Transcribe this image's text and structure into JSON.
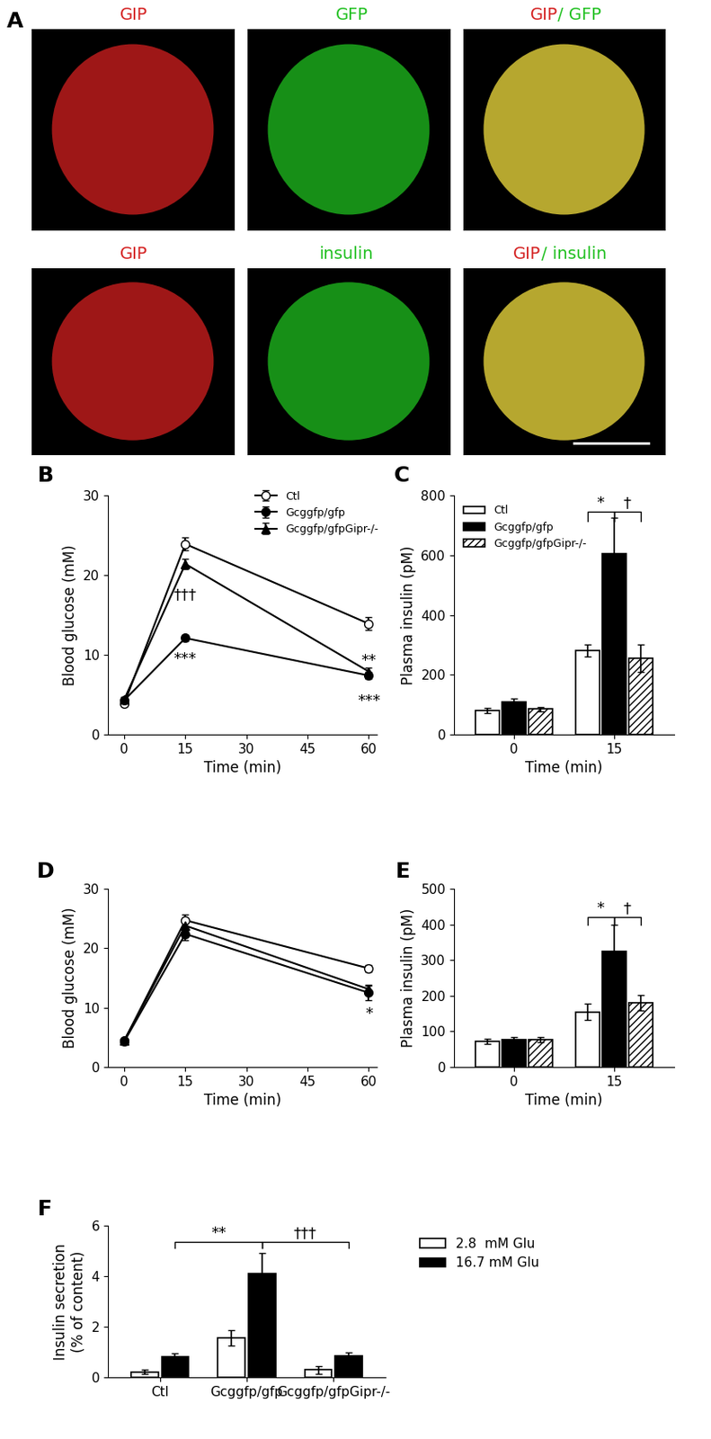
{
  "image_panel": {
    "title": "A",
    "images": [
      {
        "label": [
          {
            "text": "GIP",
            "color": "#d42020"
          }
        ]
      },
      {
        "label": [
          {
            "text": "GFP",
            "color": "#20c020"
          }
        ]
      },
      {
        "label": [
          {
            "text": "GIP",
            "color": "#d42020"
          },
          {
            "text": "/ GFP",
            "color": "#20c020"
          }
        ]
      },
      {
        "label": [
          {
            "text": "GIP",
            "color": "#d42020"
          }
        ]
      },
      {
        "label": [
          {
            "text": "insulin",
            "color": "#20c020"
          }
        ]
      },
      {
        "label": [
          {
            "text": "GIP",
            "color": "#d42020"
          },
          {
            "text": "/ insulin",
            "color": "#20c020"
          }
        ]
      }
    ]
  },
  "chart_data": [
    {
      "type": "line",
      "title": "B",
      "x_label": "Time (min)",
      "y_label": "Blood glucose (mM)",
      "x": [
        0,
        15,
        60
      ],
      "xlim": [
        -4,
        62
      ],
      "xticks": [
        0,
        15,
        30,
        45,
        60
      ],
      "ylim": [
        0,
        30
      ],
      "yticks": [
        0,
        10,
        20,
        30
      ],
      "legend": "upper right",
      "series": [
        {
          "name": "Ctl",
          "color": "#000000",
          "marker": "circle_open",
          "values": [
            3.9,
            23.9,
            13.9
          ],
          "errors": [
            0.3,
            0.8,
            0.8
          ]
        },
        {
          "name": "Gcggfp/gfp",
          "color": "#000000",
          "marker": "circle",
          "values": [
            4.3,
            12.1,
            7.4
          ],
          "errors": [
            0.3,
            0.4,
            0.4
          ]
        },
        {
          "name": "Gcggfp/gfpGipr-/-",
          "color": "#000000",
          "marker": "triangle",
          "values": [
            4.4,
            21.4,
            7.9
          ],
          "errors": [
            0.3,
            0.6,
            0.5
          ]
        }
      ],
      "annotations": [
        {
          "text": "†††",
          "x": 15,
          "y": 17.5
        },
        {
          "text": "***",
          "x": 15,
          "y": 9.5
        },
        {
          "text": "**",
          "x": 60,
          "y": 9.3
        },
        {
          "text": "***",
          "x": 60,
          "y": 4.2
        }
      ]
    },
    {
      "type": "bar",
      "title": "C",
      "x_label": "Time (min)",
      "y_label": "Plasma insulin (pM)",
      "categories": [
        "0",
        "15"
      ],
      "ylim": [
        0,
        800
      ],
      "yticks": [
        0,
        200,
        400,
        600,
        800
      ],
      "legend": "upper left",
      "series": [
        {
          "name": "Ctl",
          "color": "#ffffff",
          "values": [
            80,
            280
          ],
          "errors": [
            8,
            20
          ]
        },
        {
          "name": "Gcggfp/gfp",
          "color": "#000000",
          "values": [
            108,
            605
          ],
          "errors": [
            12,
            120
          ]
        },
        {
          "name": "Gcggfp/gfpGipr-/-",
          "color": "#ffffff",
          "values": [
            85,
            255
          ],
          "errors": [
            8,
            45
          ]
        }
      ],
      "brackets": [
        {
          "text": "*",
          "from": [
            "15",
            "Ctl"
          ],
          "to": [
            "15",
            "Gcggfp/gfp"
          ],
          "y": 745
        },
        {
          "text": "†",
          "from": [
            "15",
            "Gcggfp/gfp"
          ],
          "to": [
            "15",
            "Gcggfp/gfpGipr-/-"
          ],
          "y": 745
        }
      ]
    },
    {
      "type": "line",
      "title": "D",
      "x_label": "Time (min)",
      "y_label": "Blood glucose (mM)",
      "x": [
        0,
        15,
        60
      ],
      "xlim": [
        -4,
        62
      ],
      "xticks": [
        0,
        15,
        30,
        45,
        60
      ],
      "ylim": [
        0,
        30
      ],
      "yticks": [
        0,
        10,
        20,
        30
      ],
      "series": [
        {
          "name": "Ctl",
          "color": "#000000",
          "marker": "circle_open",
          "values": [
            4.4,
            24.7,
            16.6
          ],
          "errors": [
            0.3,
            1.0,
            0.6
          ]
        },
        {
          "name": "Gcggfp/gfp",
          "color": "#000000",
          "marker": "circle",
          "values": [
            4.3,
            22.4,
            12.5
          ],
          "errors": [
            0.3,
            1.0,
            1.2
          ]
        },
        {
          "name": "Gcggfp/gfpGipr-/-",
          "color": "#000000",
          "marker": "triangle",
          "values": [
            4.5,
            23.8,
            13.1
          ],
          "errors": [
            0.3,
            0.8,
            0.8
          ]
        }
      ],
      "annotations": [
        {
          "text": "*",
          "x": 60,
          "y": 9.0
        }
      ]
    },
    {
      "type": "bar",
      "title": "E",
      "x_label": "Time (min)",
      "y_label": "Plasma insulin (pM)",
      "categories": [
        "0",
        "15"
      ],
      "ylim": [
        0,
        500
      ],
      "yticks": [
        0,
        100,
        200,
        300,
        400,
        500
      ],
      "series": [
        {
          "name": "Ctl",
          "color": "#ffffff",
          "values": [
            72,
            155
          ],
          "errors": [
            8,
            22
          ]
        },
        {
          "name": "Gcggfp/gfp",
          "color": "#000000",
          "values": [
            78,
            325
          ],
          "errors": [
            6,
            75
          ]
        },
        {
          "name": "Gcggfp/gfpGipr-/-",
          "color": "#ffffff",
          "values": [
            76,
            180
          ],
          "errors": [
            7,
            22
          ]
        }
      ],
      "brackets": [
        {
          "text": "*",
          "from": [
            "15",
            "Ctl"
          ],
          "to": [
            "15",
            "Gcggfp/gfp"
          ],
          "y": 420
        },
        {
          "text": "†",
          "from": [
            "15",
            "Gcggfp/gfp"
          ],
          "to": [
            "15",
            "Gcggfp/gfpGipr-/-"
          ],
          "y": 420
        }
      ]
    },
    {
      "type": "bar",
      "title": "F",
      "y_label": "Insulin secretion\n(% of content)",
      "categories": [
        "Ctl",
        "Gcggfp/gfp",
        "Gcggfp/gfpGipr-/-"
      ],
      "ylim": [
        0,
        6
      ],
      "yticks": [
        0,
        2,
        4,
        6
      ],
      "legend": "upper left",
      "series": [
        {
          "name": "2.8  mM Glu",
          "color": "#ffffff",
          "values": [
            0.22,
            1.55,
            0.3
          ],
          "errors": [
            0.1,
            0.3,
            0.15
          ]
        },
        {
          "name": "16.7 mM Glu",
          "color": "#000000",
          "values": [
            0.8,
            4.1,
            0.85
          ],
          "errors": [
            0.15,
            0.8,
            0.13
          ]
        }
      ],
      "brackets": [
        {
          "text": "**",
          "from": [
            "Ctl",
            "16.7 mM Glu"
          ],
          "to": [
            "Gcggfp/gfp",
            "16.7 mM Glu"
          ],
          "y": 5.35
        },
        {
          "text": "†††",
          "from": [
            "Gcggfp/gfp",
            "16.7 mM Glu"
          ],
          "to": [
            "Gcggfp/gfpGipr-/-",
            "16.7 mM Glu"
          ],
          "y": 5.35
        }
      ]
    }
  ]
}
